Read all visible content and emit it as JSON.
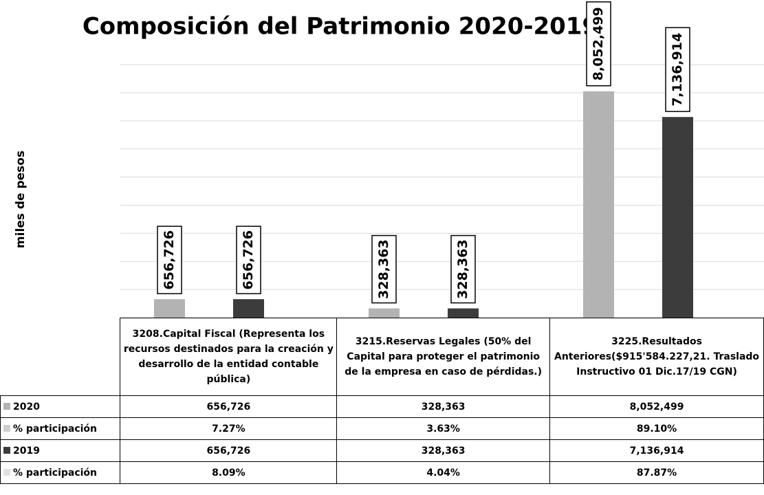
{
  "chart_data": {
    "type": "bar",
    "title": "Composición del Patrimonio 2020-2019",
    "y_label": "miles de pesos",
    "categories": [
      "3208.Capital Fiscal (Representa los recursos destinados para la creación y desarrollo de la entidad contable pública)",
      "3215.Reservas Legales (50% del Capital para proteger el patrimonio de la empresa en caso de pérdidas.)",
      "3225.Resultados Anteriores($915'584.227,21. Traslado Instructivo 01 Dic.17/19 CGN)"
    ],
    "series": [
      {
        "name": "2020",
        "color": "#b3b3b3",
        "values": [
          656726,
          328363,
          8052499
        ],
        "value_labels": [
          "656,726",
          "328,363",
          "8,052,499"
        ],
        "share_name": "% participación",
        "share_color": "#cfcfcf",
        "share_values": [
          7.27,
          3.63,
          89.1
        ],
        "share_labels": [
          "7.27%",
          "3.63%",
          "89.10%"
        ]
      },
      {
        "name": "2019",
        "color": "#3c3c3c",
        "values": [
          656726,
          328363,
          7136914
        ],
        "value_labels": [
          "656,726",
          "328,363",
          "7,136,914"
        ],
        "share_name": "% participación",
        "share_color": "#e2e2e2",
        "share_values": [
          8.09,
          4.04,
          87.87
        ],
        "share_labels": [
          "8.09%",
          "4.04%",
          "87.87%"
        ]
      }
    ],
    "ylim": [
      0,
      9000000
    ],
    "yticks": [
      0,
      1000000,
      2000000,
      3000000,
      4000000,
      5000000,
      6000000,
      7000000,
      8000000,
      9000000
    ],
    "grid": true
  }
}
